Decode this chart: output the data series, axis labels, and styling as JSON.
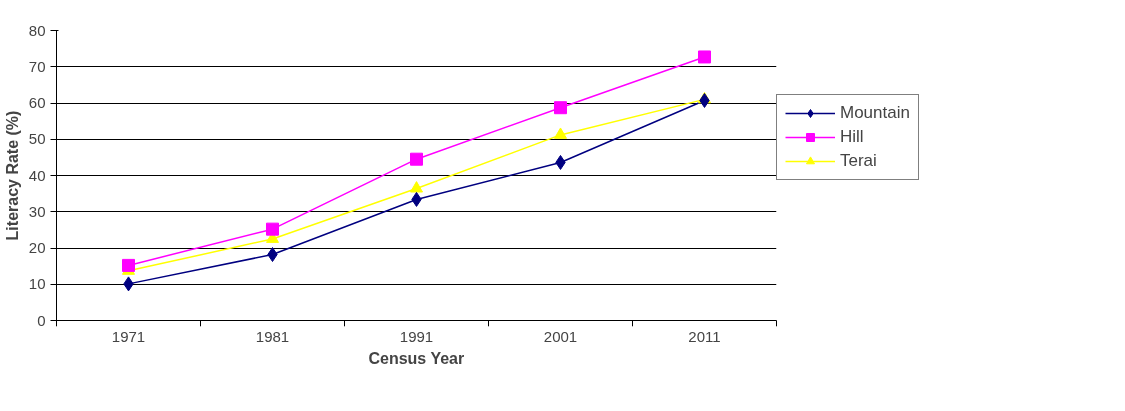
{
  "chart_data": {
    "type": "line",
    "xlabel": "Census Year",
    "ylabel": "Literacy Rate (%)",
    "categories": [
      "1971",
      "1981",
      "1991",
      "2001",
      "2011"
    ],
    "series": [
      {
        "name": "Mountain",
        "color": "#000080",
        "marker": "diamond",
        "values": [
          10.1,
          18.2,
          33.4,
          43.6,
          60.7
        ]
      },
      {
        "name": "Hill",
        "color": "#ff00ff",
        "marker": "square",
        "values": [
          15.2,
          25.2,
          44.5,
          58.7,
          72.7
        ]
      },
      {
        "name": "Terai",
        "color": "#ffff00",
        "marker": "triangle",
        "values": [
          13.7,
          22.5,
          36.4,
          51.2,
          61
        ]
      }
    ],
    "ylim": [
      0,
      80
    ],
    "yticks": [
      0,
      10,
      20,
      30,
      40,
      50,
      60,
      70,
      80
    ],
    "grid": "y",
    "legend": "right"
  }
}
